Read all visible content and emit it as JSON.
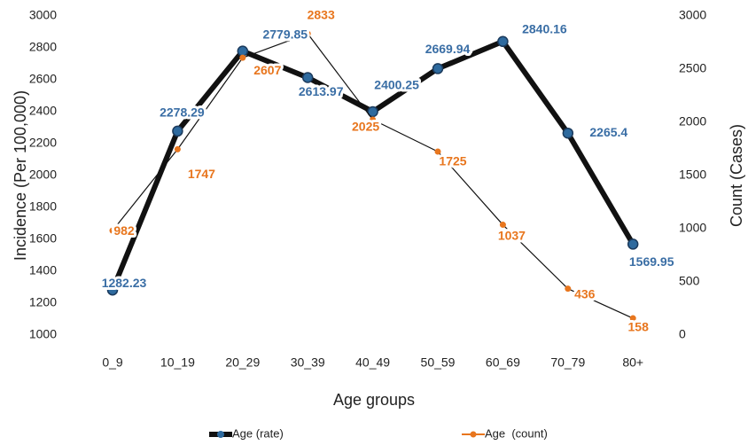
{
  "chart_data": {
    "type": "line",
    "categories": [
      "0_9",
      "10_19",
      "20_29",
      "30_39",
      "40_49",
      "50_59",
      "60_69",
      "70_79",
      "80+"
    ],
    "series": [
      {
        "name": "Age (rate)",
        "line_color": "#111111",
        "marker_color": "#2e6a9e",
        "label_color": "#3a6ea5",
        "line_width": 6,
        "values": [
          1282.23,
          2278.29,
          2779.85,
          2613.97,
          2400.25,
          2669.94,
          2840.16,
          2265.4,
          1569.95
        ]
      },
      {
        "name": "Age  (count)",
        "line_color": "#111111",
        "legend_color": "#e8761e",
        "marker_color": "#e8761e",
        "label_color": "#e8761e",
        "line_width": 1.2,
        "axis": "y2",
        "values": [
          982,
          1747,
          2607,
          2833,
          2025,
          1725,
          1037,
          436,
          158
        ]
      }
    ],
    "ylim": [
      1000,
      3000
    ],
    "yticks": [
      1000,
      1200,
      1400,
      1600,
      1800,
      2000,
      2200,
      2400,
      2600,
      2800,
      3000
    ],
    "y2lim": [
      0,
      3000
    ],
    "y2ticks": [
      0,
      500,
      1000,
      1500,
      2000,
      2500,
      3000
    ],
    "xlabel": "Age groups",
    "ylabel": "Incidence (Per 100,000)",
    "y2label": "Count (Cases)",
    "grid": false,
    "legend": "bottom"
  }
}
